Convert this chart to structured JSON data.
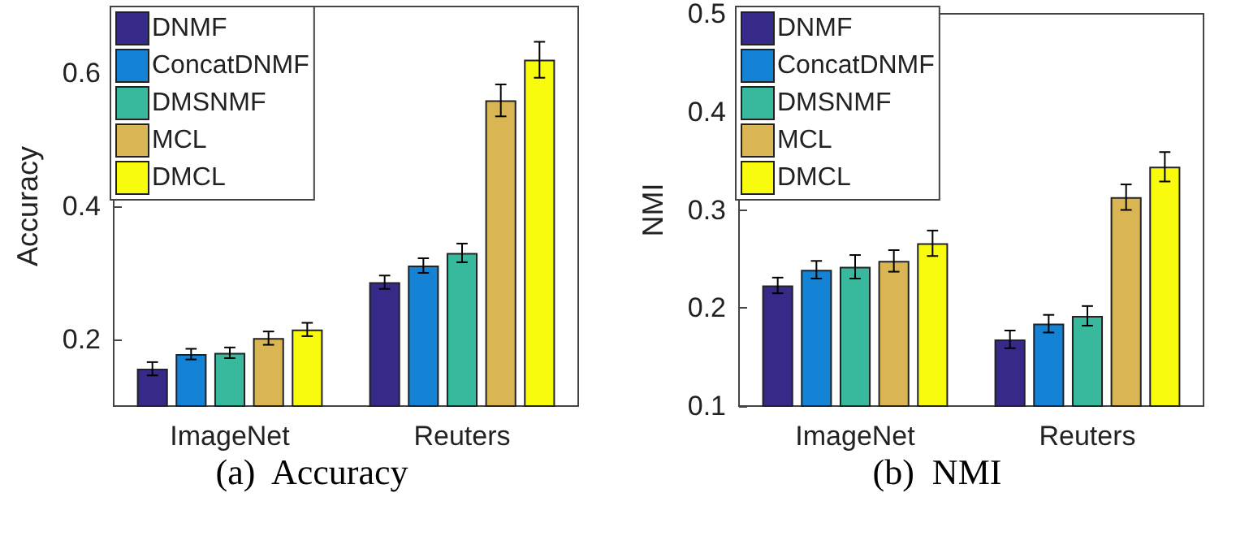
{
  "chart_data": [
    {
      "type": "bar",
      "ylabel": "Accuracy",
      "categories": [
        "ImageNet",
        "Reuters"
      ],
      "ylim": [
        0.1,
        0.7
      ],
      "yticks": [
        0.2,
        0.4,
        0.6
      ],
      "legend": "top left",
      "grid": false,
      "annotations": [
        "(a)  Accuracy"
      ],
      "series": [
        {
          "name": "DNMF",
          "color": "#352a87",
          "values": [
            0.156,
            0.286
          ],
          "errors": [
            0.01,
            0.01
          ]
        },
        {
          "name": "ConcatDNMF",
          "color": "#1483d5",
          "values": [
            0.178,
            0.311
          ],
          "errors": [
            0.008,
            0.011
          ]
        },
        {
          "name": "DMSNMF",
          "color": "#38b99e",
          "values": [
            0.18,
            0.33
          ],
          "errors": [
            0.008,
            0.014
          ]
        },
        {
          "name": "MCL",
          "color": "#d9b653",
          "values": [
            0.202,
            0.559
          ],
          "errors": [
            0.01,
            0.024
          ]
        },
        {
          "name": "DMCL",
          "color": "#f9fb0e",
          "values": [
            0.215,
            0.62
          ],
          "errors": [
            0.01,
            0.027
          ]
        }
      ]
    },
    {
      "type": "bar",
      "ylabel": "NMI",
      "categories": [
        "ImageNet",
        "Reuters"
      ],
      "ylim": [
        0.1,
        0.5
      ],
      "yticks": [
        0.1,
        0.2,
        0.3,
        0.4,
        0.5
      ],
      "legend": "top left",
      "grid": false,
      "annotations": [
        "(b)  NMI"
      ],
      "series": [
        {
          "name": "DNMF",
          "color": "#352a87",
          "values": [
            0.223,
            0.168
          ],
          "errors": [
            0.008,
            0.009
          ]
        },
        {
          "name": "ConcatDNMF",
          "color": "#1483d5",
          "values": [
            0.239,
            0.184
          ],
          "errors": [
            0.009,
            0.009
          ]
        },
        {
          "name": "DMSNMF",
          "color": "#38b99e",
          "values": [
            0.242,
            0.192
          ],
          "errors": [
            0.012,
            0.01
          ]
        },
        {
          "name": "MCL",
          "color": "#d9b653",
          "values": [
            0.248,
            0.313
          ],
          "errors": [
            0.011,
            0.013
          ]
        },
        {
          "name": "DMCL",
          "color": "#f9fb0e",
          "values": [
            0.266,
            0.344
          ],
          "errors": [
            0.013,
            0.015
          ]
        }
      ]
    }
  ]
}
